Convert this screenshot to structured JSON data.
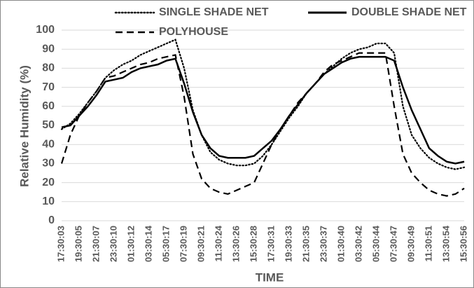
{
  "chart_data": {
    "type": "line",
    "y_label": "Relative Humidity (%)",
    "x_label": "TIME",
    "categories": [
      "17:30:03",
      null,
      "19:30:05",
      null,
      "21:30:07",
      null,
      "23:30:10",
      null,
      "01:30:12",
      null,
      "03:30:14",
      null,
      "05:30:17",
      null,
      "07:30:19",
      null,
      "09:30:21",
      null,
      "11:30:24",
      null,
      "13:30:26",
      null,
      "15:30:28",
      null,
      "17:30:31",
      null,
      "19:30:33",
      null,
      "21:30:35",
      null,
      "23:30:37",
      null,
      "01:30:40",
      null,
      "03:30:42",
      null,
      "05:30:44",
      null,
      "07:30:47",
      null,
      "09:30:49",
      null,
      "11:30:51",
      null,
      "13:30:54",
      null,
      "15:30:56"
    ],
    "series": [
      {
        "name": "SINGLE SHADE NET",
        "color": "#000000",
        "dash": "dotted",
        "values": [
          48,
          51,
          56,
          62,
          68,
          75,
          79,
          82,
          84,
          87,
          89,
          91,
          93,
          95,
          80,
          58,
          45,
          36,
          32,
          30,
          29,
          29,
          30,
          34,
          40,
          47,
          54,
          60,
          67,
          72,
          77,
          81,
          85,
          88,
          90,
          91,
          93,
          93,
          88,
          60,
          45,
          38,
          33,
          30,
          28,
          27,
          28
        ]
      },
      {
        "name": "DOUBLE SHADE NET",
        "color": "#000000",
        "dash": "solid",
        "values": [
          49,
          50,
          55,
          60,
          66,
          73,
          74,
          75,
          78,
          80,
          81,
          82,
          84,
          85,
          72,
          57,
          45,
          38,
          34,
          33,
          33,
          33,
          34,
          38,
          42,
          48,
          55,
          61,
          67,
          72,
          77,
          80,
          83,
          85,
          86,
          86,
          86,
          86,
          84,
          70,
          58,
          48,
          38,
          34,
          31,
          30,
          31
        ]
      },
      {
        "name": "POLYHOUSE",
        "color": "#000000",
        "dash": "dashed",
        "values": [
          30,
          45,
          55,
          62,
          68,
          75,
          76,
          78,
          80,
          82,
          83,
          85,
          86,
          87,
          65,
          35,
          22,
          17,
          15,
          14,
          16,
          18,
          20,
          30,
          40,
          48,
          55,
          62,
          67,
          72,
          78,
          82,
          84,
          86,
          88,
          88,
          88,
          88,
          60,
          35,
          25,
          20,
          16,
          14,
          13,
          14,
          17
        ]
      }
    ],
    "ylim": [
      0,
      100
    ],
    "yticks": [
      0,
      10,
      20,
      30,
      40,
      50,
      60,
      70,
      80,
      90,
      100
    ],
    "grid": true
  }
}
